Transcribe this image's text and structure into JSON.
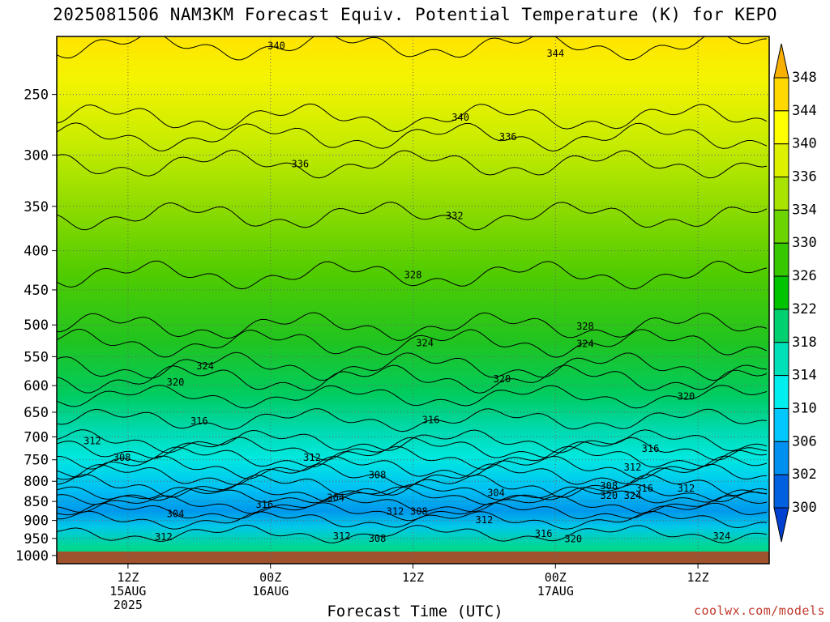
{
  "title": "2025081506 NAM3KM Forecast Equiv. Potential Temperature (K) for KEPO",
  "credit": "coolwx.com/models",
  "colors": {
    "ground": "#a0522d",
    "credit": "#c0392b",
    "contour": "#000000"
  },
  "chart_data": {
    "type": "heatmap",
    "title": "2025081506 NAM3KM Forecast Equiv. Potential Temperature (K) for KEPO",
    "xlabel": "Forecast Time (UTC)",
    "ylabel": "",
    "x_ticks": [
      {
        "lines": [
          "12Z",
          "15AUG",
          "2025"
        ],
        "hour": 6
      },
      {
        "lines": [
          "00Z",
          "16AUG"
        ],
        "hour": 18
      },
      {
        "lines": [
          "12Z"
        ],
        "hour": 30
      },
      {
        "lines": [
          "00Z",
          "17AUG"
        ],
        "hour": 42
      },
      {
        "lines": [
          "12Z"
        ],
        "hour": 54
      }
    ],
    "xlim_hours": [
      0,
      60
    ],
    "y_ticks_hPa": [
      250,
      300,
      350,
      400,
      450,
      500,
      550,
      600,
      650,
      700,
      750,
      800,
      850,
      900,
      950,
      1000
    ],
    "ylim_hPa": [
      1025,
      210
    ],
    "colorbar": {
      "labels": [
        348,
        344,
        340,
        336,
        334,
        330,
        326,
        322,
        318,
        314,
        310,
        306,
        302,
        300
      ],
      "colors": [
        "#f8b000",
        "#ffd800",
        "#ffff00",
        "#dcf000",
        "#a8e400",
        "#6cd400",
        "#38c800",
        "#00c400",
        "#00d070",
        "#00e0b8",
        "#00eeee",
        "#00c8ff",
        "#0090f0",
        "#0060e0",
        "#0040d0"
      ]
    },
    "contour_labels": [
      {
        "text": "340",
        "hour": 18.5,
        "p": 216
      },
      {
        "text": "344",
        "hour": 42,
        "p": 221
      },
      {
        "text": "340",
        "hour": 34,
        "p": 268
      },
      {
        "text": "336",
        "hour": 38,
        "p": 284
      },
      {
        "text": "336",
        "hour": 20.5,
        "p": 308
      },
      {
        "text": "332",
        "hour": 33.5,
        "p": 360
      },
      {
        "text": "328",
        "hour": 30,
        "p": 430
      },
      {
        "text": "328",
        "hour": 44.5,
        "p": 502
      },
      {
        "text": "324",
        "hour": 44.5,
        "p": 529
      },
      {
        "text": "324",
        "hour": 31,
        "p": 528
      },
      {
        "text": "324",
        "hour": 12.5,
        "p": 566
      },
      {
        "text": "320",
        "hour": 10,
        "p": 594
      },
      {
        "text": "320",
        "hour": 37.5,
        "p": 588
      },
      {
        "text": "320",
        "hour": 53,
        "p": 620
      },
      {
        "text": "316",
        "hour": 12,
        "p": 668
      },
      {
        "text": "316",
        "hour": 31.5,
        "p": 665
      },
      {
        "text": "316",
        "hour": 50,
        "p": 725
      },
      {
        "text": "312",
        "hour": 3,
        "p": 709
      },
      {
        "text": "312",
        "hour": 21.5,
        "p": 745
      },
      {
        "text": "312",
        "hour": 48.5,
        "p": 767
      },
      {
        "text": "308",
        "hour": 5.5,
        "p": 745
      },
      {
        "text": "308",
        "hour": 27,
        "p": 785
      },
      {
        "text": "304",
        "hour": 37,
        "p": 828
      },
      {
        "text": "308",
        "hour": 46.5,
        "p": 811
      },
      {
        "text": "316",
        "hour": 49.5,
        "p": 817
      },
      {
        "text": "312",
        "hour": 53,
        "p": 817
      },
      {
        "text": "320",
        "hour": 46.5,
        "p": 835
      },
      {
        "text": "324",
        "hour": 48.5,
        "p": 835
      },
      {
        "text": "304",
        "hour": 23.5,
        "p": 840
      },
      {
        "text": "316",
        "hour": 17.5,
        "p": 858
      },
      {
        "text": "312",
        "hour": 28.5,
        "p": 876
      },
      {
        "text": "308",
        "hour": 30.5,
        "p": 876
      },
      {
        "text": "304",
        "hour": 10,
        "p": 882
      },
      {
        "text": "312",
        "hour": 36,
        "p": 899
      },
      {
        "text": "316",
        "hour": 41,
        "p": 937
      },
      {
        "text": "312",
        "hour": 24,
        "p": 943
      },
      {
        "text": "308",
        "hour": 27,
        "p": 950
      },
      {
        "text": "320",
        "hour": 43.5,
        "p": 952
      },
      {
        "text": "324",
        "hour": 56,
        "p": 943
      },
      {
        "text": "312",
        "hour": 9,
        "p": 946
      }
    ]
  }
}
